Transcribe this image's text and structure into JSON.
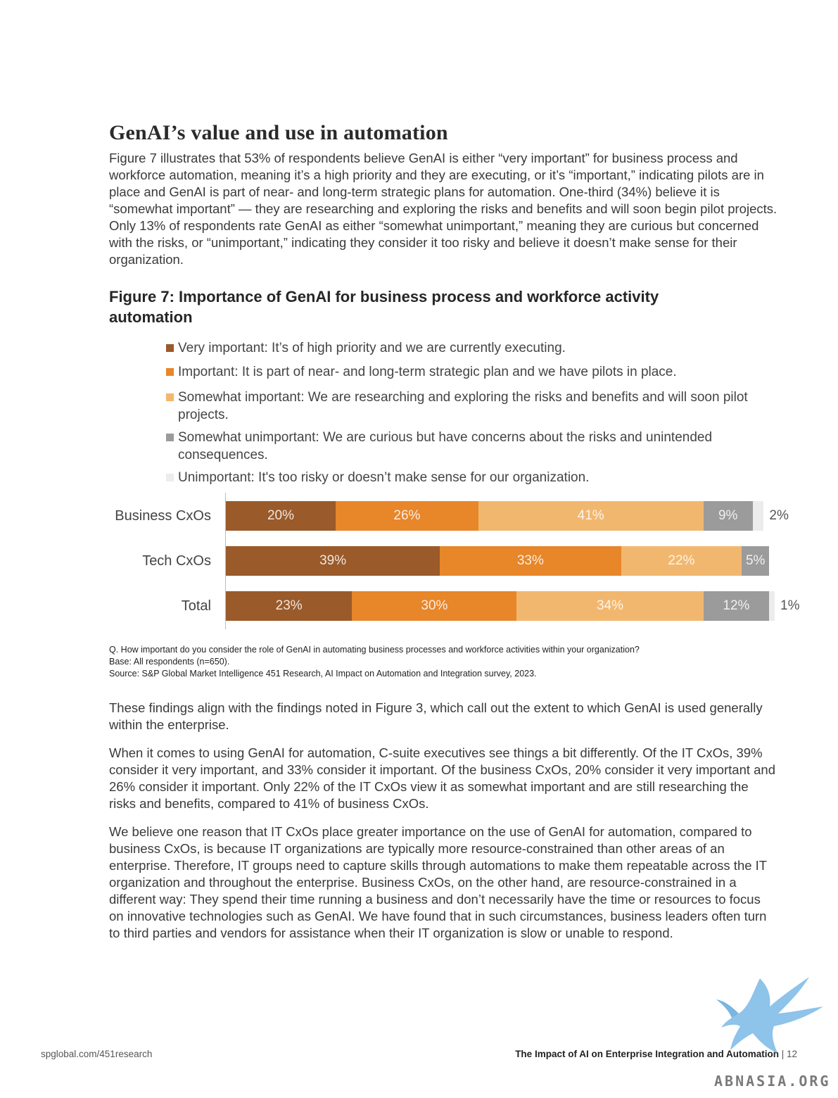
{
  "section": {
    "title": "GenAI’s value and use in automation",
    "intro": "Figure 7 illustrates that 53% of respondents believe GenAI is either “very important” for business process and workforce automation, meaning it’s a high priority and they are executing, or it’s “important,” indicating pilots are in place and GenAI is part of near- and long-term strategic plans for automation. One-third (34%) believe it is “somewhat important” — they are researching and exploring the risks and benefits and will soon begin pilot projects. Only 13% of respondents rate GenAI as either “somewhat unimportant,” meaning they are curious but concerned with the risks, or “unimportant,” indicating they consider it too risky and believe it doesn’t make sense for their organization."
  },
  "figure": {
    "title": "Figure 7: Importance of GenAI for business process and workforce activity automation",
    "notes": [
      "Q. How important do you consider the role of GenAI in automating business processes and workforce activities within your organization?",
      "Base: All respondents (n=650).",
      "Source: S&P Global Market Intelligence 451 Research, AI Impact on Automation and Integration survey, 2023."
    ]
  },
  "chart_data": {
    "type": "bar",
    "orientation": "horizontal",
    "stacked": true,
    "categories": [
      "Business CxOs",
      "Tech CxOs",
      "Total"
    ],
    "series": [
      {
        "name": "Very important: It’s of high priority and we are currently executing.",
        "color": "#9a5a2a",
        "values": [
          20,
          39,
          23
        ]
      },
      {
        "name": "Important: It is part of near- and long-term strategic plan and we have pilots in place.",
        "color": "#e8862a",
        "values": [
          26,
          33,
          30
        ]
      },
      {
        "name": "Somewhat important: We are researching and exploring the risks and benefits and will soon pilot projects.",
        "color": "#f2b76e",
        "values": [
          41,
          22,
          34
        ]
      },
      {
        "name": "Somewhat unimportant: We are curious but have concerns about the risks and unintended consequences.",
        "color": "#9b9b9b",
        "values": [
          9,
          5,
          12
        ]
      },
      {
        "name": "Unimportant: It's too risky or doesn’t make sense for our organization.",
        "color": "#ececec",
        "values": [
          2,
          0,
          1
        ]
      }
    ],
    "xlim": [
      0,
      100
    ],
    "unit": "%",
    "legend_position": "top"
  },
  "body": {
    "p1": "These findings align with the findings noted in Figure 3, which call out the extent to which GenAI is used generally within the enterprise.",
    "p2": "When it comes to using GenAI for automation, C-suite executives see things a bit differently. Of the IT CxOs, 39% consider it very important, and 33% consider it important. Of the business CxOs, 20% consider it very important and 26% consider it important. Only 22% of the IT CxOs view it as somewhat important and are still researching the risks and benefits, compared to 41% of business CxOs.",
    "p3": "We believe one reason that IT CxOs place greater importance on the use of GenAI for automation, compared to business CxOs, is because IT organizations are typically more resource-constrained than other areas of an enterprise. Therefore, IT groups need to capture skills through automations to make them repeatable across the IT organization and throughout the enterprise. Business CxOs, on the other hand, are resource-constrained in a different way: They spend their time running a business and don’t necessarily have the time or resources to focus on innovative technologies such as GenAI. We have found that in such circumstances, business leaders often turn to third parties and vendors for assistance when their IT organization is slow or unable to respond."
  },
  "footer": {
    "url": "spglobal.com/451research",
    "doc_title": "The Impact of AI on Enterprise Integration and Automation",
    "page_number": "| 12"
  },
  "watermark": {
    "text": "ABNASIA.ORG",
    "icon": "bird-logo-icon"
  }
}
